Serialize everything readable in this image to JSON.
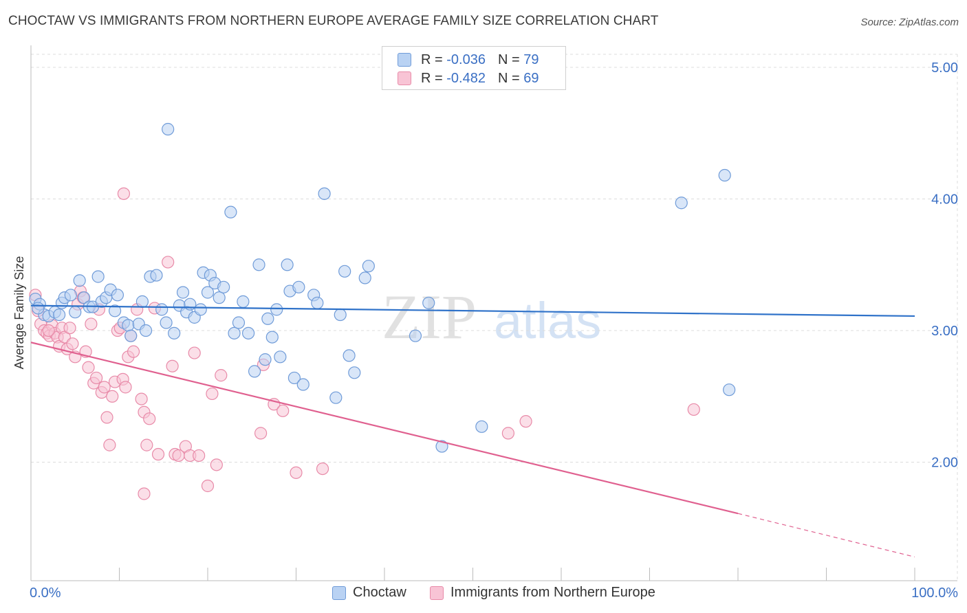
{
  "title": "CHOCTAW VS IMMIGRANTS FROM NORTHERN EUROPE AVERAGE FAMILY SIZE CORRELATION CHART",
  "source": "Source: ZipAtlas.com",
  "watermark": {
    "zip": "ZIP",
    "atlas": "atlas"
  },
  "stats_legend": {
    "r_label": "R =",
    "n_label": "N =",
    "rows": [
      {
        "r": "-0.036",
        "n": "79"
      },
      {
        "r": "-0.482",
        "n": "69"
      }
    ]
  },
  "colors": {
    "blue_fill": "#b9d2f3",
    "blue_stroke": "#6f9bd8",
    "blue_line": "#2f72c9",
    "pink_fill": "#f8c4d5",
    "pink_stroke": "#e88aa8",
    "pink_line": "#e0608f",
    "tick_label": "#3a6fc4",
    "grid": "#dcdcdc"
  },
  "chart_data": {
    "type": "scatter",
    "title": "CHOCTAW VS IMMIGRANTS FROM NORTHERN EUROPE AVERAGE FAMILY SIZE CORRELATION CHART",
    "xlabel": "",
    "ylabel": "Average Family Size",
    "xlim": [
      0,
      100
    ],
    "ylim": [
      1.15,
      5.1
    ],
    "x_tick_labels": [
      "0.0%",
      "100.0%"
    ],
    "y_ticks": [
      2.0,
      3.0,
      4.0,
      5.0
    ],
    "y_tick_labels": [
      "2.00",
      "3.00",
      "4.00",
      "5.00"
    ],
    "grid": true,
    "series": [
      {
        "name": "Choctaw",
        "trend": {
          "x": [
            0,
            100
          ],
          "y": [
            3.19,
            3.11
          ]
        },
        "points": [
          [
            0.5,
            3.24
          ],
          [
            1.0,
            3.2
          ],
          [
            1.5,
            3.12
          ],
          [
            2.0,
            3.11
          ],
          [
            2.7,
            3.14
          ],
          [
            3.2,
            3.12
          ],
          [
            3.5,
            3.21
          ],
          [
            3.8,
            3.25
          ],
          [
            4.5,
            3.27
          ],
          [
            5.0,
            3.14
          ],
          [
            5.5,
            3.38
          ],
          [
            6.0,
            3.25
          ],
          [
            6.6,
            3.18
          ],
          [
            7.0,
            3.18
          ],
          [
            7.6,
            3.41
          ],
          [
            8.0,
            3.22
          ],
          [
            8.5,
            3.25
          ],
          [
            9.0,
            3.31
          ],
          [
            9.5,
            3.15
          ],
          [
            9.8,
            3.27
          ],
          [
            10.5,
            3.06
          ],
          [
            11.0,
            3.04
          ],
          [
            11.3,
            2.96
          ],
          [
            12.2,
            3.05
          ],
          [
            12.6,
            3.22
          ],
          [
            13.0,
            3.0
          ],
          [
            13.5,
            3.41
          ],
          [
            14.2,
            3.42
          ],
          [
            14.8,
            3.16
          ],
          [
            15.3,
            3.06
          ],
          [
            15.5,
            4.53
          ],
          [
            16.2,
            2.98
          ],
          [
            16.8,
            3.19
          ],
          [
            17.2,
            3.29
          ],
          [
            17.6,
            3.14
          ],
          [
            18.0,
            3.2
          ],
          [
            18.5,
            3.1
          ],
          [
            19.2,
            3.16
          ],
          [
            19.5,
            3.44
          ],
          [
            20.0,
            3.29
          ],
          [
            20.3,
            3.42
          ],
          [
            20.8,
            3.36
          ],
          [
            21.3,
            3.25
          ],
          [
            21.8,
            3.33
          ],
          [
            22.6,
            3.9
          ],
          [
            23.0,
            2.98
          ],
          [
            23.5,
            3.06
          ],
          [
            24.0,
            3.22
          ],
          [
            24.6,
            2.98
          ],
          [
            25.3,
            2.69
          ],
          [
            25.8,
            3.5
          ],
          [
            26.5,
            2.78
          ],
          [
            26.8,
            3.09
          ],
          [
            27.3,
            2.95
          ],
          [
            27.8,
            3.16
          ],
          [
            28.2,
            2.8
          ],
          [
            29.0,
            3.5
          ],
          [
            29.3,
            3.3
          ],
          [
            29.8,
            2.64
          ],
          [
            30.3,
            3.33
          ],
          [
            30.8,
            2.59
          ],
          [
            32.0,
            3.27
          ],
          [
            32.4,
            3.21
          ],
          [
            33.2,
            4.04
          ],
          [
            34.5,
            2.49
          ],
          [
            35.0,
            3.12
          ],
          [
            35.5,
            3.45
          ],
          [
            36.0,
            2.81
          ],
          [
            36.6,
            2.68
          ],
          [
            37.8,
            3.4
          ],
          [
            38.2,
            3.49
          ],
          [
            43.5,
            2.96
          ],
          [
            45.0,
            3.21
          ],
          [
            46.5,
            2.12
          ],
          [
            51.0,
            2.27
          ],
          [
            73.6,
            3.97
          ],
          [
            78.5,
            4.18
          ],
          [
            79.0,
            2.55
          ],
          [
            0.8,
            3.17
          ]
        ]
      },
      {
        "name": "Immigrants from Northern Europe",
        "trend": {
          "x": [
            0,
            80
          ],
          "y": [
            2.91,
            1.61
          ]
        },
        "trend_dashed": {
          "x": [
            80,
            100
          ],
          "y": [
            1.61,
            1.28
          ]
        },
        "points": [
          [
            0.5,
            3.27
          ],
          [
            0.8,
            3.15
          ],
          [
            1.1,
            3.05
          ],
          [
            1.5,
            3.0
          ],
          [
            1.8,
            2.98
          ],
          [
            2.1,
            2.96
          ],
          [
            2.4,
            3.04
          ],
          [
            2.7,
            2.98
          ],
          [
            3.0,
            2.95
          ],
          [
            3.2,
            2.88
          ],
          [
            3.5,
            3.02
          ],
          [
            3.8,
            2.95
          ],
          [
            4.1,
            2.86
          ],
          [
            4.4,
            3.02
          ],
          [
            4.7,
            2.9
          ],
          [
            5.0,
            2.8
          ],
          [
            5.3,
            3.2
          ],
          [
            5.6,
            3.3
          ],
          [
            5.9,
            3.25
          ],
          [
            6.2,
            2.84
          ],
          [
            6.5,
            2.72
          ],
          [
            6.8,
            3.05
          ],
          [
            7.1,
            2.6
          ],
          [
            7.4,
            2.64
          ],
          [
            7.7,
            3.16
          ],
          [
            8.0,
            2.53
          ],
          [
            8.3,
            2.57
          ],
          [
            8.6,
            2.34
          ],
          [
            8.9,
            2.13
          ],
          [
            9.2,
            2.5
          ],
          [
            9.5,
            2.61
          ],
          [
            9.8,
            3.0
          ],
          [
            10.1,
            3.02
          ],
          [
            10.4,
            2.63
          ],
          [
            10.7,
            2.57
          ],
          [
            10.5,
            4.04
          ],
          [
            11.0,
            2.8
          ],
          [
            11.3,
            2.96
          ],
          [
            11.6,
            2.84
          ],
          [
            12.0,
            3.16
          ],
          [
            12.5,
            2.48
          ],
          [
            12.8,
            2.38
          ],
          [
            13.1,
            2.13
          ],
          [
            13.4,
            2.33
          ],
          [
            14.0,
            3.17
          ],
          [
            14.4,
            2.06
          ],
          [
            15.5,
            3.52
          ],
          [
            16.0,
            2.73
          ],
          [
            16.3,
            2.06
          ],
          [
            16.7,
            2.05
          ],
          [
            17.5,
            2.12
          ],
          [
            18.0,
            2.05
          ],
          [
            18.5,
            2.83
          ],
          [
            19.0,
            2.05
          ],
          [
            20.0,
            1.82
          ],
          [
            20.5,
            2.52
          ],
          [
            21.0,
            1.98
          ],
          [
            21.5,
            2.66
          ],
          [
            26.0,
            2.22
          ],
          [
            26.3,
            2.74
          ],
          [
            27.5,
            2.44
          ],
          [
            28.5,
            2.39
          ],
          [
            30.0,
            1.92
          ],
          [
            33.0,
            1.95
          ],
          [
            54.0,
            2.22
          ],
          [
            56.0,
            2.31
          ],
          [
            75.0,
            2.4
          ],
          [
            12.8,
            1.76
          ],
          [
            2.0,
            3.0
          ]
        ]
      }
    ]
  }
}
